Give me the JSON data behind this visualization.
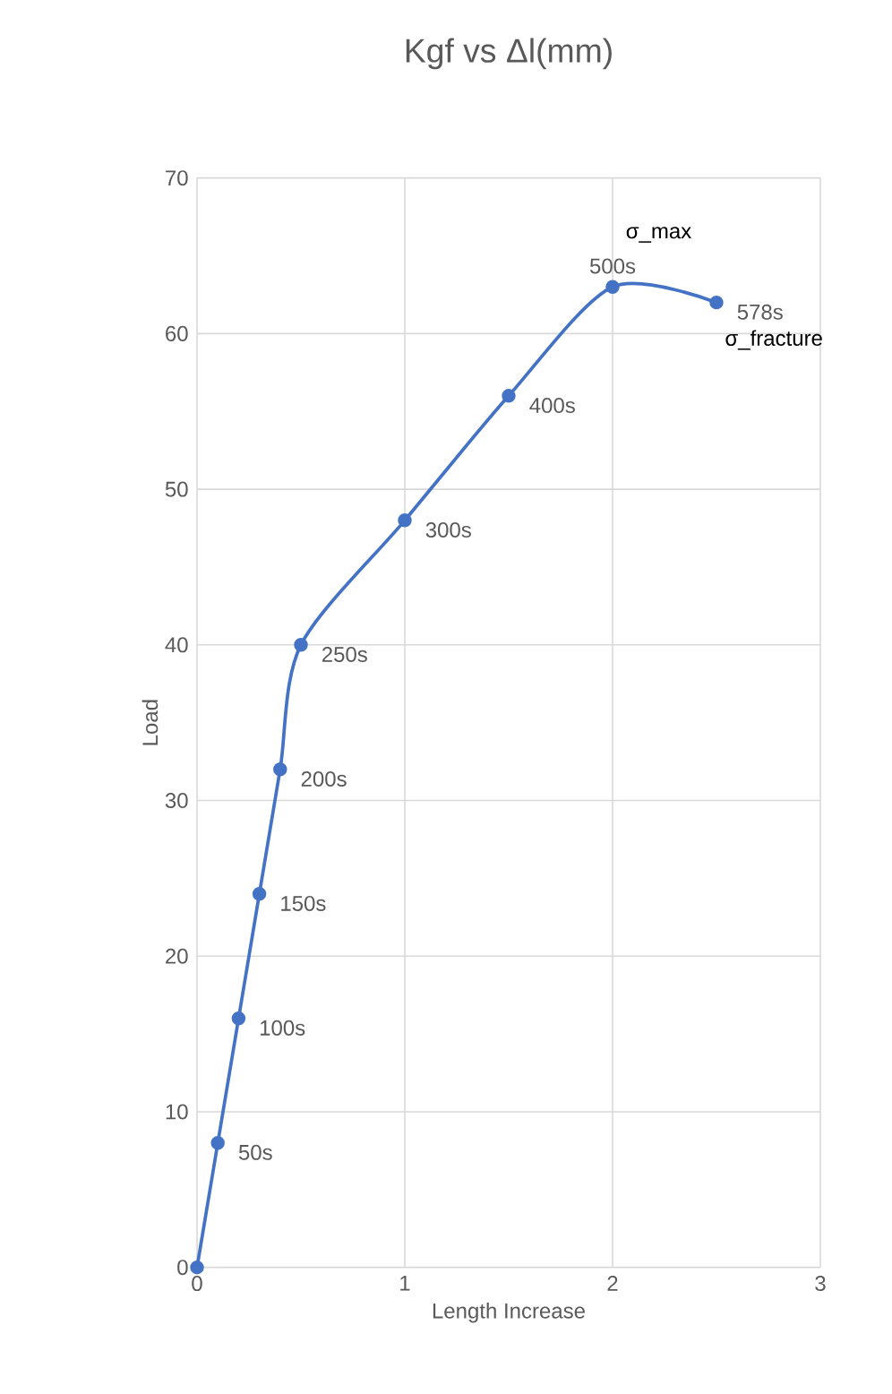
{
  "chart_data": {
    "type": "line",
    "title": "Kgf vs Δl(mm)",
    "xlabel": "Length Increase",
    "ylabel": "Load",
    "x": [
      0,
      0.1,
      0.2,
      0.3,
      0.4,
      0.5,
      1,
      1.5,
      2,
      2.5
    ],
    "series": [
      {
        "color": "#4472c4",
        "values": [
          0,
          8,
          16,
          24,
          32,
          40,
          48,
          56,
          63,
          62
        ]
      }
    ],
    "annotations": [
      {
        "text": "50s",
        "x": 0.1,
        "y": 8
      },
      {
        "text": "100s",
        "x": 0.2,
        "y": 16
      },
      {
        "text": "150s",
        "x": 0.3,
        "y": 24
      },
      {
        "text": "200s",
        "x": 0.4,
        "y": 32
      },
      {
        "text": "250s",
        "x": 0.5,
        "y": 40
      },
      {
        "text": "300s",
        "x": 1,
        "y": 48
      },
      {
        "text": "400s",
        "x": 1.5,
        "y": 56
      },
      {
        "text": "500s",
        "x": 2,
        "y": 63
      },
      {
        "text": "578s",
        "x": 2.5,
        "y": 62
      },
      {
        "text": "σ_max",
        "x": 2,
        "y": 63
      },
      {
        "text": "σ_fracture",
        "x": 2.5,
        "y": 62
      }
    ],
    "xlim": [
      0,
      3
    ],
    "ylim": [
      0,
      70
    ],
    "xticks": [
      0,
      1,
      2,
      3
    ],
    "yticks": [
      0,
      10,
      20,
      30,
      40,
      50,
      60,
      70
    ],
    "grid": true,
    "marker": "circle",
    "line_style": "solid"
  }
}
